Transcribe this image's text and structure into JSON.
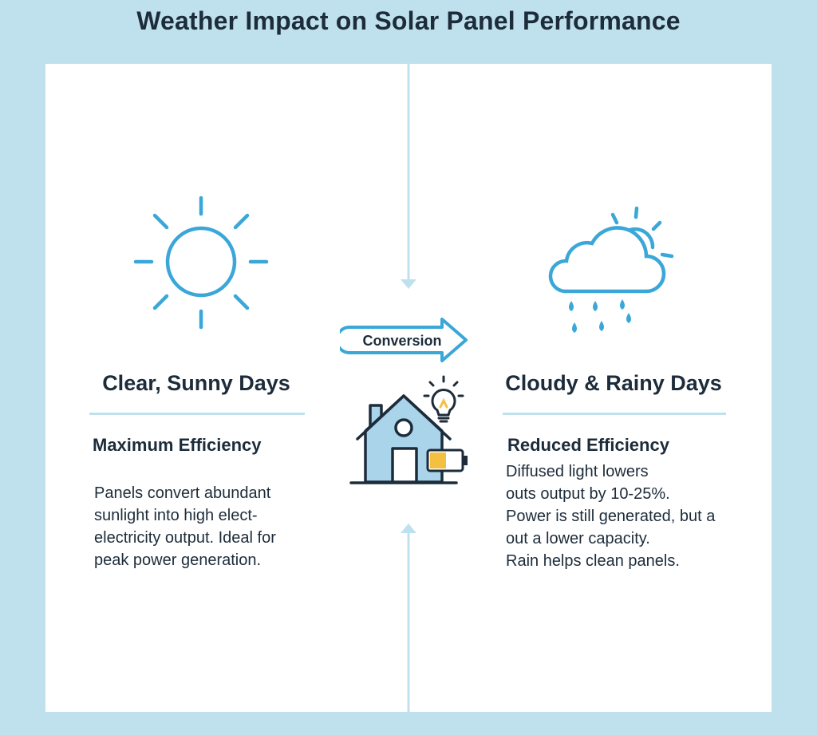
{
  "title": "Weather Impact on Solar Panel Performance",
  "colors": {
    "accent": "#3aa7d8",
    "page_bg": "#bfe1ee",
    "battery": "#f4c042",
    "ink": "#1d2c3a"
  },
  "left": {
    "icon": "sun-icon",
    "heading": "Clear, Sunny Days",
    "subheading": "Maximum Efficiency",
    "lines": [
      "Panels convert abundant",
      "sunlight into high elect-",
      "electricity output. Ideal for",
      "peak power generation."
    ]
  },
  "center": {
    "label": "Conversion",
    "icons": [
      "house-icon",
      "lightbulb-icon",
      "battery-icon",
      "arrow-right-icon"
    ]
  },
  "right": {
    "icon": "cloud-rain-icon",
    "heading": "Cloudy & Rainy Days",
    "subheading": "Reduced Efficiency",
    "lines": [
      "Diffused light lowers",
      "outs output by 10-25%.",
      "Power is still generated, but a",
      "out a lower capacity.",
      "Rain helps clean panels."
    ]
  }
}
